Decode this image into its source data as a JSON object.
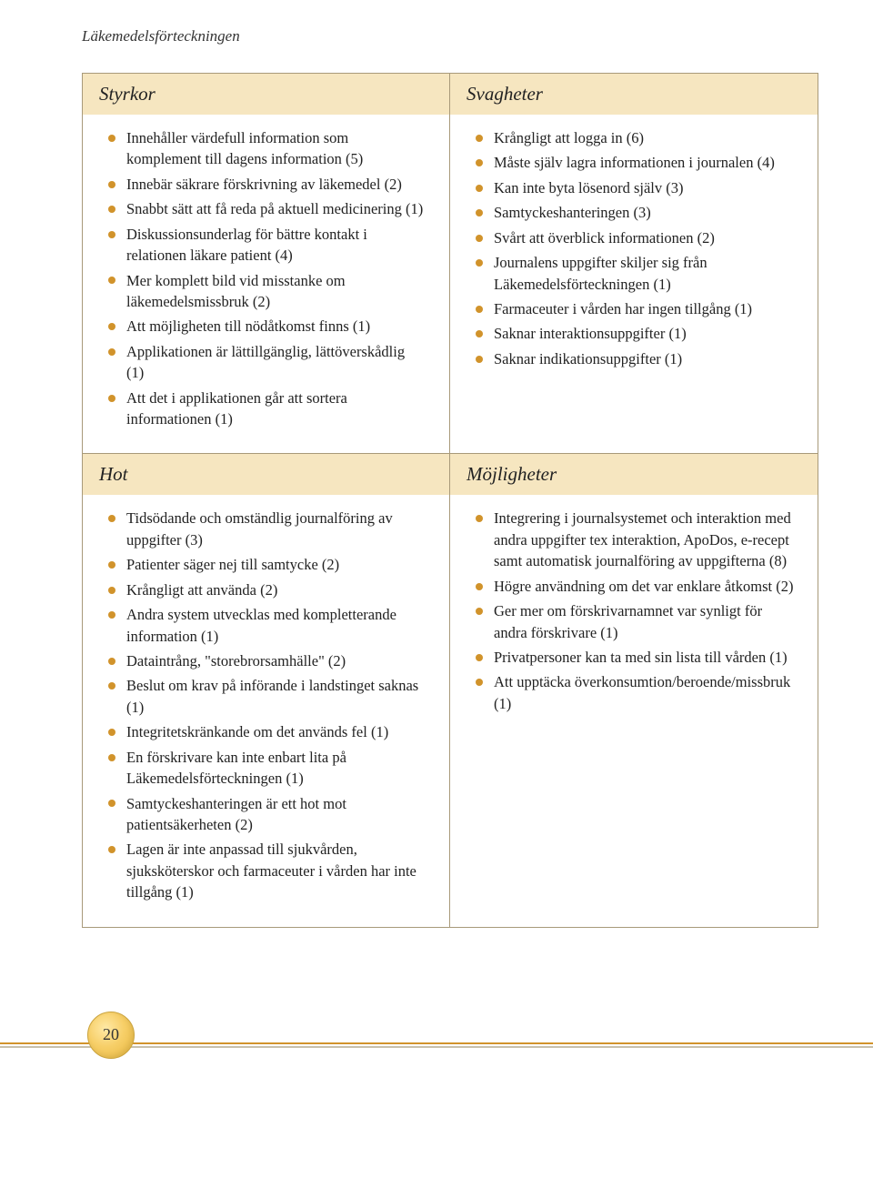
{
  "heading": "Läkemedelsförteckningen",
  "pageNumber": "20",
  "quadrants": {
    "styrkor": {
      "title": "Styrkor",
      "items": [
        "Innehåller värdefull information som komplement till dagens information (5)",
        "Innebär säkrare förskrivning av läkemedel (2)",
        "Snabbt sätt att få reda på aktuell medicinering (1)",
        "Diskussionsunderlag för bättre kontakt i relationen läkare patient (4)",
        "Mer komplett bild vid misstanke om läkemedelsmissbruk (2)",
        "Att möjligheten till nödåtkomst finns (1)",
        "Applikationen är lättillgänglig, lättöverskådlig (1)",
        "Att det i applikationen går att sortera informationen (1)"
      ]
    },
    "svagheter": {
      "title": "Svagheter",
      "items": [
        "Krångligt att logga in (6)",
        "Måste själv lagra informationen i journalen (4)",
        "Kan inte byta lösenord själv (3)",
        "Samtyckeshanteringen (3)",
        "Svårt att överblick informationen (2)",
        "Journalens uppgifter skiljer sig från Läkemedelsförteckningen (1)",
        "Farmaceuter i vården har ingen tillgång (1)",
        "Saknar interaktionsuppgifter (1)",
        "Saknar indikationsuppgifter (1)"
      ]
    },
    "hot": {
      "title": "Hot",
      "items": [
        "Tidsödande och omständlig journalföring av uppgifter (3)",
        "Patienter säger nej till samtycke (2)",
        "Krångligt att använda (2)",
        "Andra system utvecklas med kompletterande information (1)",
        "Dataintrång, \"storebrorsamhälle\" (2)",
        "Beslut om krav på införande i landstinget saknas (1)",
        "Integritetskränkande om det används fel (1)",
        "En förskrivare kan inte enbart lita på Läkemedelsförteckningen (1)",
        "Samtyckeshanteringen är ett hot mot patientsäkerheten (2)",
        "Lagen är inte anpassad till sjukvården, sjuksköterskor och farmaceuter i vården har inte tillgång (1)"
      ]
    },
    "mojligheter": {
      "title": "Möjligheter",
      "items": [
        "Integrering i journalsystemet och interaktion med andra uppgifter tex interaktion, ApoDos, e-recept samt automatisk journalföring av uppgifterna (8)",
        "Högre användning om det var enklare åtkomst (2)",
        "Ger mer om förskrivarnamnet var synligt för andra förskrivare (1)",
        "Privatpersoner kan ta med sin lista till vården (1)",
        "Att upptäcka överkonsumtion/beroende/missbruk (1)"
      ]
    }
  }
}
